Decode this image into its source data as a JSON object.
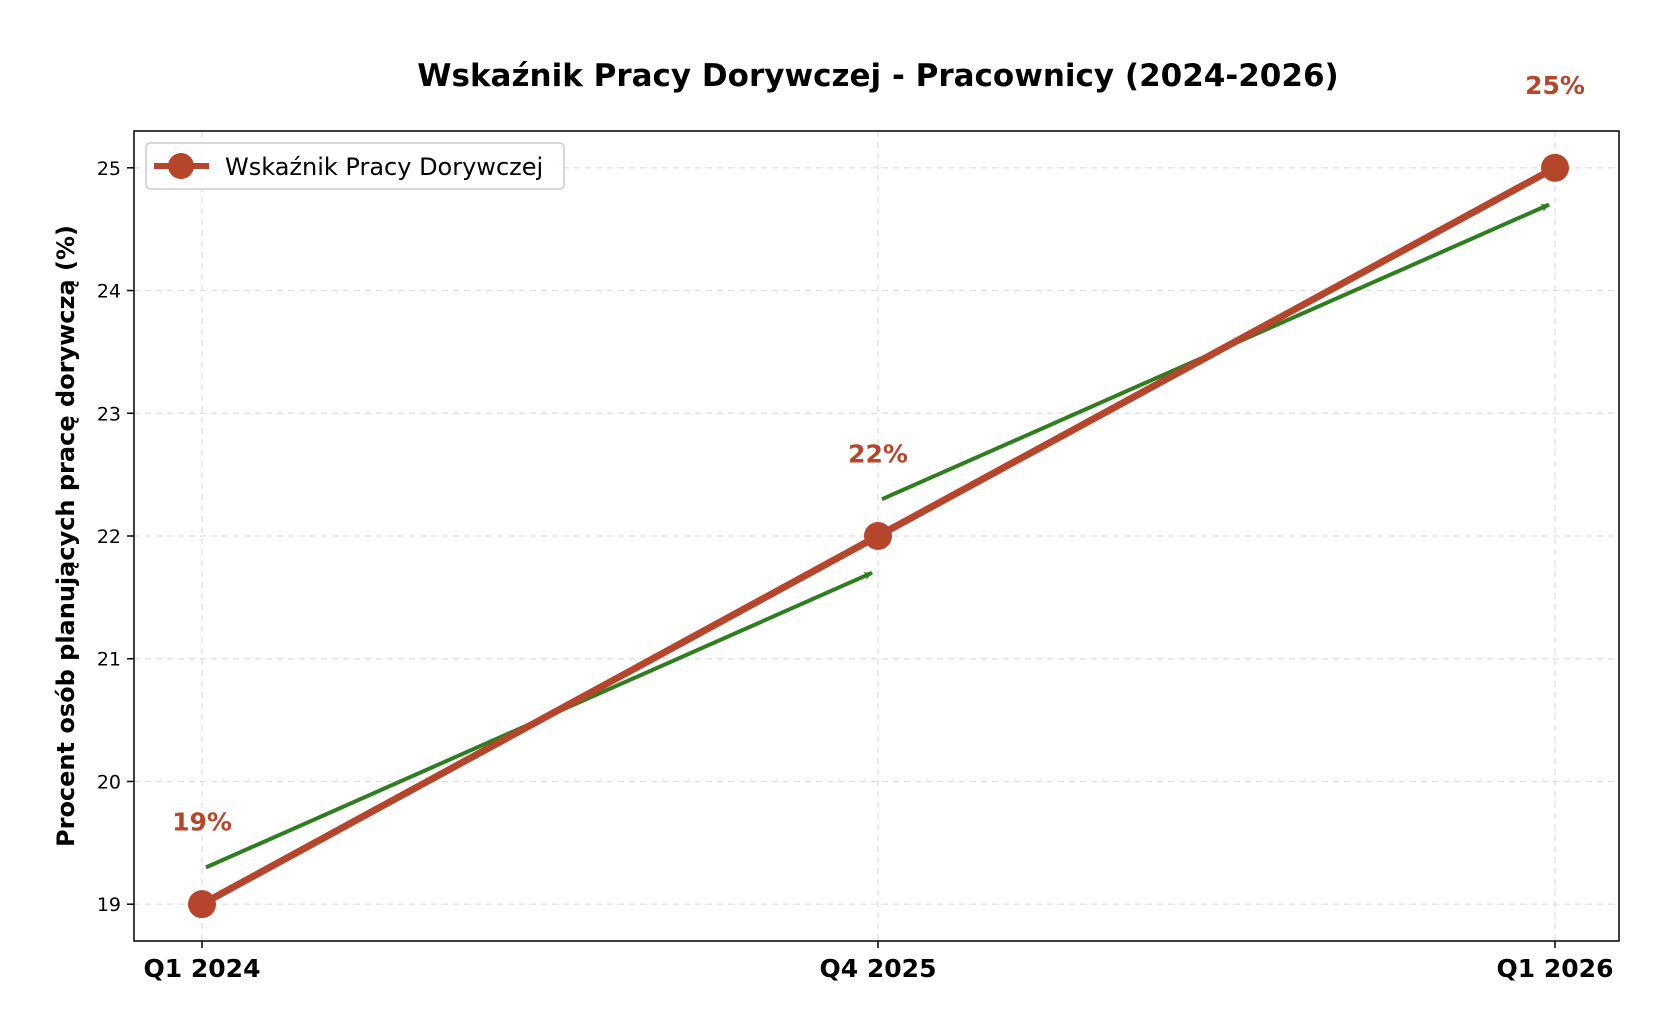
{
  "chart_data": {
    "type": "line",
    "title": "Wskaźnik Pracy Dorywczej - Pracownicy (2024-2026)",
    "xlabel": "",
    "ylabel": "Procent osób planujących pracę dorywczą (%)",
    "categories": [
      "Q1 2024",
      "Q4 2025",
      "Q1 2026"
    ],
    "series": [
      {
        "name": "Wskaźnik Pracy Dorywczej",
        "values": [
          19,
          22,
          25
        ],
        "color": "#b5452b"
      }
    ],
    "data_labels": [
      "19%",
      "22%",
      "25%"
    ],
    "ylim": [
      18.7,
      25.3
    ],
    "yticks": [
      "19",
      "20",
      "21",
      "22",
      "23",
      "24",
      "25"
    ],
    "trend_arrows_color": "#2e7d1e",
    "grid": true,
    "legend_position": "upper-left"
  }
}
